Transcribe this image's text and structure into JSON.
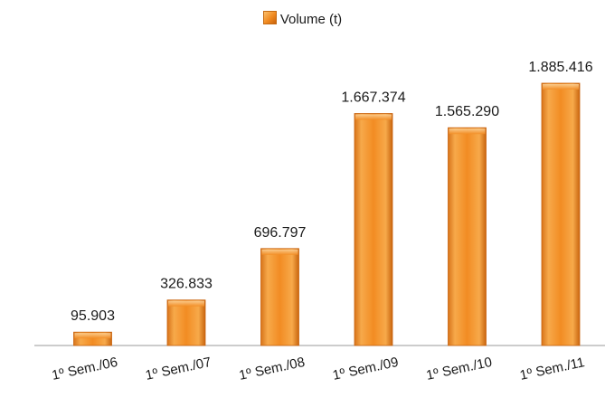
{
  "chart_data": {
    "type": "bar",
    "categories": [
      "1º Sem./06",
      "1º Sem./07",
      "1º Sem./08",
      "1º Sem./09",
      "1º Sem./10",
      "1º Sem./11"
    ],
    "series": [
      {
        "name": "Volume (t)",
        "values": [
          95903,
          326833,
          696797,
          1667374,
          1565290,
          1885416
        ]
      }
    ],
    "data_labels": [
      "95.903",
      "326.833",
      "696.797",
      "1.667.374",
      "1.565.290",
      "1.885.416"
    ],
    "legend_position": "top",
    "grid": false,
    "ylim": [
      0,
      2200000
    ],
    "bar_color": "#f0891f"
  }
}
